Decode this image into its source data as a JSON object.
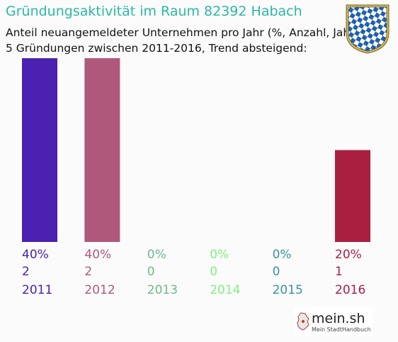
{
  "header": {
    "title": "Gründungsaktivität im Raum 82392 Habach",
    "subtitle_line1": "Anteil neuangemeldeter Unternehmen pro Jahr (%, Anzahl, Jahr)",
    "subtitle_line2": "5 Gründungen zwischen 2011-2016, Trend absteigend:"
  },
  "crest": {
    "icon": "bavarian-coat-of-arms-icon",
    "colors": [
      "#1f5fae",
      "#ffffff"
    ]
  },
  "logo": {
    "main": "mein.sh",
    "sub": "Mein StadtHandbuch"
  },
  "chart_data": {
    "type": "bar",
    "categories": [
      "2011",
      "2012",
      "2013",
      "2014",
      "2015",
      "2016"
    ],
    "values": [
      40,
      40,
      0,
      0,
      0,
      20
    ],
    "percent_labels": [
      "40%",
      "40%",
      "0%",
      "0%",
      "0%",
      "20%"
    ],
    "counts": [
      2,
      2,
      0,
      0,
      0,
      1
    ],
    "colors": [
      "#4a21b0",
      "#b0587c",
      "#6fb98a",
      "#7ff07f",
      "#3a91a6",
      "#aa1f40"
    ],
    "ylim": [
      0,
      40
    ],
    "grid": false
  }
}
